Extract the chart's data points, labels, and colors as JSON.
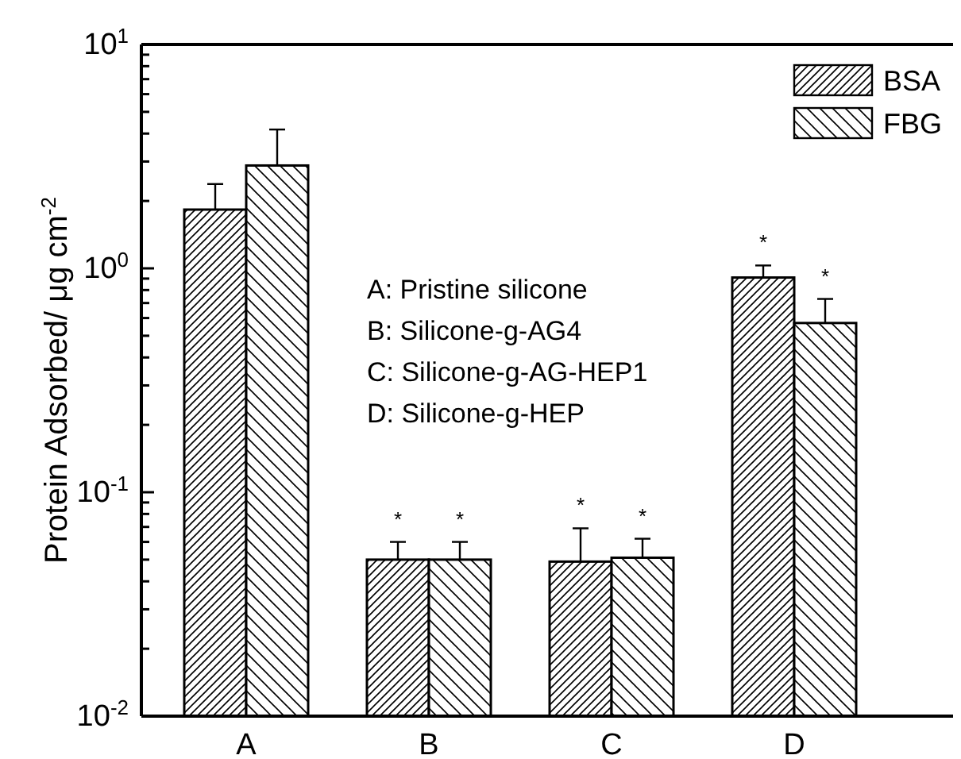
{
  "chart_data": {
    "type": "bar",
    "xlabel": null,
    "ylabel": "Protein Adsorbed/ μg cm$^{-2}$",
    "categories": [
      "A",
      "B",
      "C",
      "D"
    ],
    "series": [
      {
        "name": "BSA",
        "color": "#000000",
        "values": [
          1.83,
          0.05,
          0.049,
          0.91
        ],
        "errors": [
          0.55,
          0.01,
          0.02,
          0.12
        ],
        "value_labels": [
          null,
          "*",
          "*",
          "*"
        ]
      },
      {
        "name": "FBG",
        "color": "#000000",
        "values": [
          2.88,
          0.05,
          0.051,
          0.57
        ],
        "errors": [
          1.29,
          0.01,
          0.011,
          0.16
        ],
        "value_labels": [
          null,
          "*",
          "*",
          "*"
        ]
      }
    ],
    "log": true,
    "ylim": [
      0.01,
      10
    ],
    "yticks": [
      {
        "value": 0.01,
        "label": "10$^{-2}$"
      },
      {
        "value": 0.02,
        "label": null
      },
      {
        "value": 0.03,
        "label": null
      },
      {
        "value": 0.04,
        "label": null
      },
      {
        "value": 0.05,
        "label": null
      },
      {
        "value": 0.06,
        "label": null
      },
      {
        "value": 0.07,
        "label": null
      },
      {
        "value": 0.08,
        "label": null
      },
      {
        "value": 0.09,
        "label": null
      },
      {
        "value": 0.1,
        "label": "10$^{-1}$"
      },
      {
        "value": 0.2,
        "label": null
      },
      {
        "value": 0.3,
        "label": null
      },
      {
        "value": 0.4,
        "label": null
      },
      {
        "value": 0.5,
        "label": null
      },
      {
        "value": 0.6,
        "label": null
      },
      {
        "value": 0.7,
        "label": null
      },
      {
        "value": 0.8,
        "label": null
      },
      {
        "value": 0.9,
        "label": null
      },
      {
        "value": 1,
        "label": "10$^{0}$"
      },
      {
        "value": 2,
        "label": null
      },
      {
        "value": 3,
        "label": null
      },
      {
        "value": 4,
        "label": null
      },
      {
        "value": 5,
        "label": null
      },
      {
        "value": 6,
        "label": null
      },
      {
        "value": 7,
        "label": null
      },
      {
        "value": 8,
        "label": null
      },
      {
        "value": 9,
        "label": null
      },
      {
        "value": 10,
        "label": "10$^{1}$"
      }
    ],
    "legend": "top right",
    "grid": false,
    "annotations": [
      "A: Pristine silicone",
      "B: Silicone-g-AG4",
      "C: Silicone-g-AG-HEP1",
      "D: Silicone-g-HEP"
    ]
  }
}
